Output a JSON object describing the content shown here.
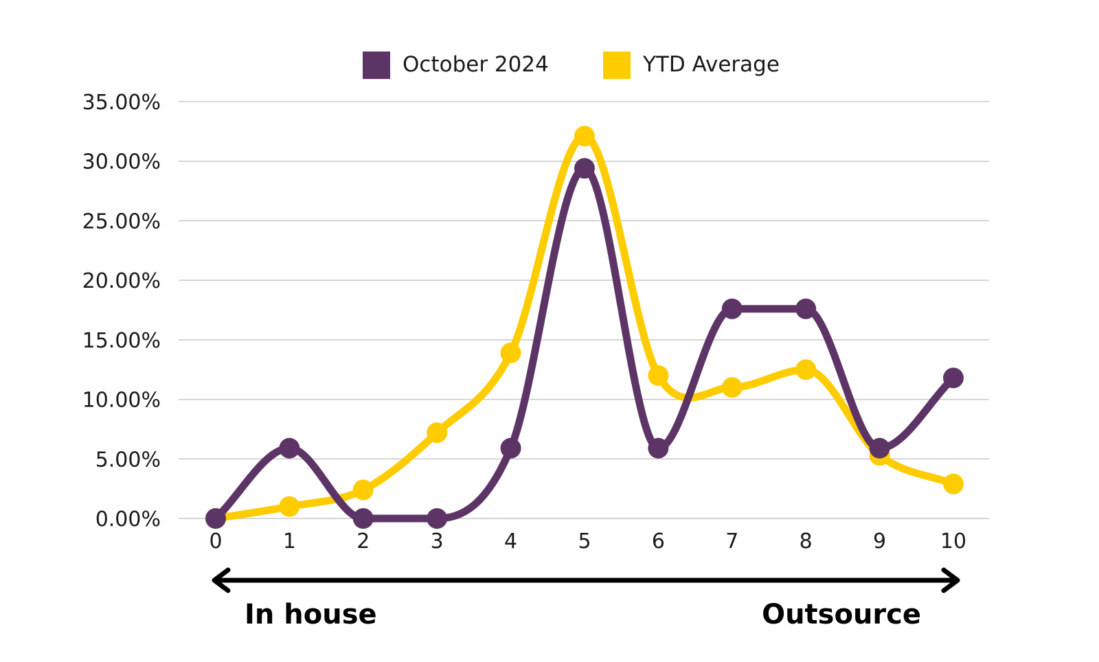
{
  "chart_data": {
    "type": "line",
    "smooth": true,
    "categories": [
      "0",
      "1",
      "2",
      "3",
      "4",
      "5",
      "6",
      "7",
      "8",
      "9",
      "10"
    ],
    "y_ticks": [
      "0.00%",
      "5.00%",
      "10.00%",
      "15.00%",
      "20.00%",
      "25.00%",
      "30.00%",
      "35.00%"
    ],
    "ylim": [
      0,
      35
    ],
    "grid": true,
    "legend_position": "top-center",
    "series": [
      {
        "name": "October 2024",
        "color": "#5c3566",
        "values": [
          0,
          5.9,
          0,
          0,
          5.9,
          29.4,
          5.9,
          17.6,
          17.6,
          5.9,
          11.8
        ]
      },
      {
        "name": "YTD Average",
        "color": "#ffcc00",
        "values": [
          0,
          1.0,
          2.4,
          7.2,
          13.9,
          32.1,
          12.0,
          11.0,
          12.5,
          5.3,
          2.9
        ]
      }
    ],
    "annotations": {
      "arrow": "double-headed",
      "left_label": "In house",
      "right_label": "Outsource"
    }
  }
}
